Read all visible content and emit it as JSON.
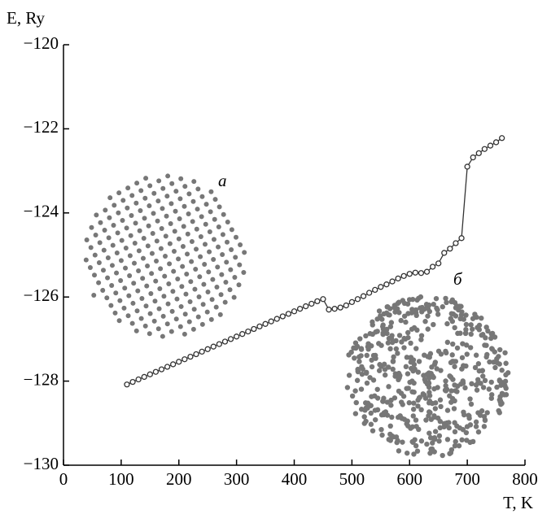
{
  "chart_data": {
    "type": "line",
    "x_label": "T, K",
    "y_label": "E, Ry",
    "annotations": [
      "a",
      "б"
    ],
    "x": [
      110,
      120,
      130,
      140,
      150,
      160,
      170,
      180,
      190,
      200,
      210,
      220,
      230,
      240,
      250,
      260,
      270,
      280,
      290,
      300,
      310,
      320,
      330,
      340,
      350,
      360,
      370,
      380,
      390,
      400,
      410,
      420,
      430,
      440,
      450,
      460,
      470,
      480,
      490,
      500,
      510,
      520,
      530,
      540,
      550,
      560,
      570,
      580,
      590,
      600,
      610,
      620,
      630,
      640,
      650,
      660,
      670,
      680,
      690,
      700,
      710,
      720,
      730,
      740,
      750,
      760
    ],
    "series": [
      {
        "color": "#333333",
        "values": [
          -128.08,
          -128.02,
          -127.96,
          -127.9,
          -127.84,
          -127.78,
          -127.72,
          -127.66,
          -127.6,
          -127.54,
          -127.48,
          -127.42,
          -127.36,
          -127.3,
          -127.24,
          -127.18,
          -127.12,
          -127.06,
          -127.0,
          -126.94,
          -126.88,
          -126.82,
          -126.76,
          -126.7,
          -126.64,
          -126.58,
          -126.52,
          -126.46,
          -126.4,
          -126.34,
          -126.28,
          -126.22,
          -126.16,
          -126.1,
          -126.05,
          -126.3,
          -126.28,
          -126.25,
          -126.2,
          -126.12,
          -126.05,
          -125.98,
          -125.9,
          -125.83,
          -125.76,
          -125.7,
          -125.63,
          -125.56,
          -125.5,
          -125.45,
          -125.42,
          -125.43,
          -125.4,
          -125.28,
          -125.2,
          -124.95,
          -124.85,
          -124.72,
          -124.6,
          -122.9,
          -122.68,
          -122.58,
          -122.48,
          -122.4,
          -122.32,
          -122.22
        ]
      }
    ],
    "xlim": [
      0,
      800
    ],
    "xticks": [
      0,
      100,
      200,
      300,
      400,
      500,
      600,
      700,
      800
    ],
    "ylim": [
      -130,
      -120
    ],
    "yticks": [
      {
        "value": -130,
        "label": "−130"
      },
      {
        "value": -128,
        "label": "−128"
      },
      {
        "value": -126,
        "label": "−126"
      },
      {
        "value": -124,
        "label": "−124"
      },
      {
        "value": -122,
        "label": "−122"
      },
      {
        "value": -120,
        "label": "−120"
      }
    ]
  }
}
